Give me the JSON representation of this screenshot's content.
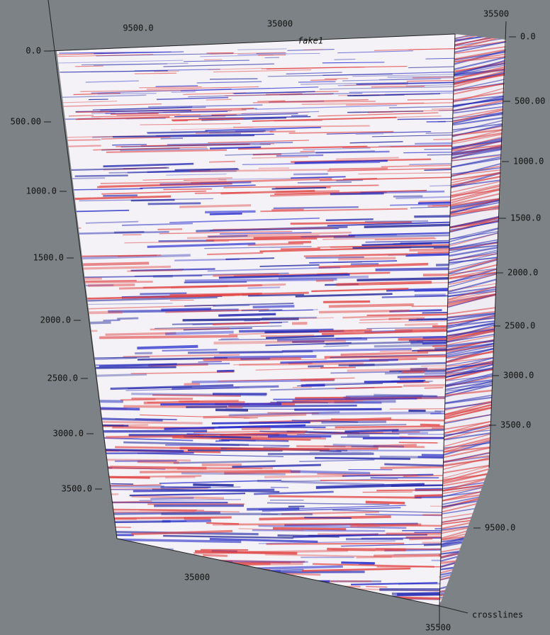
{
  "axes": {
    "left": [
      "0.0",
      "500.00",
      "1000.0",
      "1500.0",
      "2000.0",
      "2500.0",
      "3000.0",
      "3500.0"
    ],
    "right": [
      "0.0",
      "500.00",
      "1000.0",
      "1500.0",
      "2000.0",
      "2500.0",
      "3000.0",
      "3500.0",
      "9500.0"
    ],
    "top": [
      "9500.0",
      "35000",
      "35500"
    ],
    "bottom": [
      "35000",
      "35500"
    ]
  },
  "labels": {
    "axis_name": "crosslines",
    "volume": "fake1"
  }
}
